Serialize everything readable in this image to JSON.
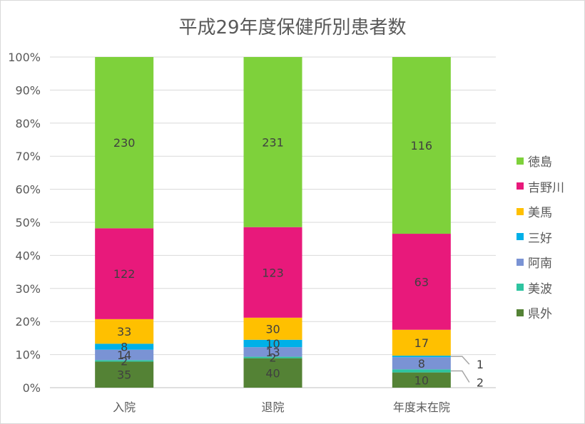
{
  "chart_data": {
    "type": "bar",
    "stacked": "percent",
    "title": "平成29年度保健所別患者数",
    "xlabel": "",
    "ylabel": "",
    "ylim": [
      0,
      100
    ],
    "yticks": [
      "0%",
      "10%",
      "20%",
      "30%",
      "40%",
      "50%",
      "60%",
      "70%",
      "80%",
      "90%",
      "100%"
    ],
    "grid": true,
    "legend_position": "right",
    "categories": [
      "入院",
      "退院",
      "年度末在院"
    ],
    "series": [
      {
        "name": "県外",
        "color": "#548235",
        "values": [
          35,
          40,
          10
        ]
      },
      {
        "name": "美波",
        "color": "#2ec4a0",
        "values": [
          2,
          2,
          2
        ]
      },
      {
        "name": "阿南",
        "color": "#7a93d4",
        "values": [
          14,
          13,
          8
        ]
      },
      {
        "name": "三好",
        "color": "#00b0e8",
        "values": [
          8,
          10,
          1
        ]
      },
      {
        "name": "美馬",
        "color": "#ffc000",
        "values": [
          33,
          30,
          17
        ]
      },
      {
        "name": "吉野川",
        "color": "#e8197b",
        "values": [
          122,
          123,
          63
        ]
      },
      {
        "name": "徳島",
        "color": "#7ed13b",
        "values": [
          230,
          231,
          116
        ]
      }
    ],
    "callouts": [
      {
        "category": "年度末在院",
        "series": "三好",
        "label": "1"
      },
      {
        "category": "年度末在院",
        "series": "美波",
        "label": "2"
      }
    ]
  }
}
